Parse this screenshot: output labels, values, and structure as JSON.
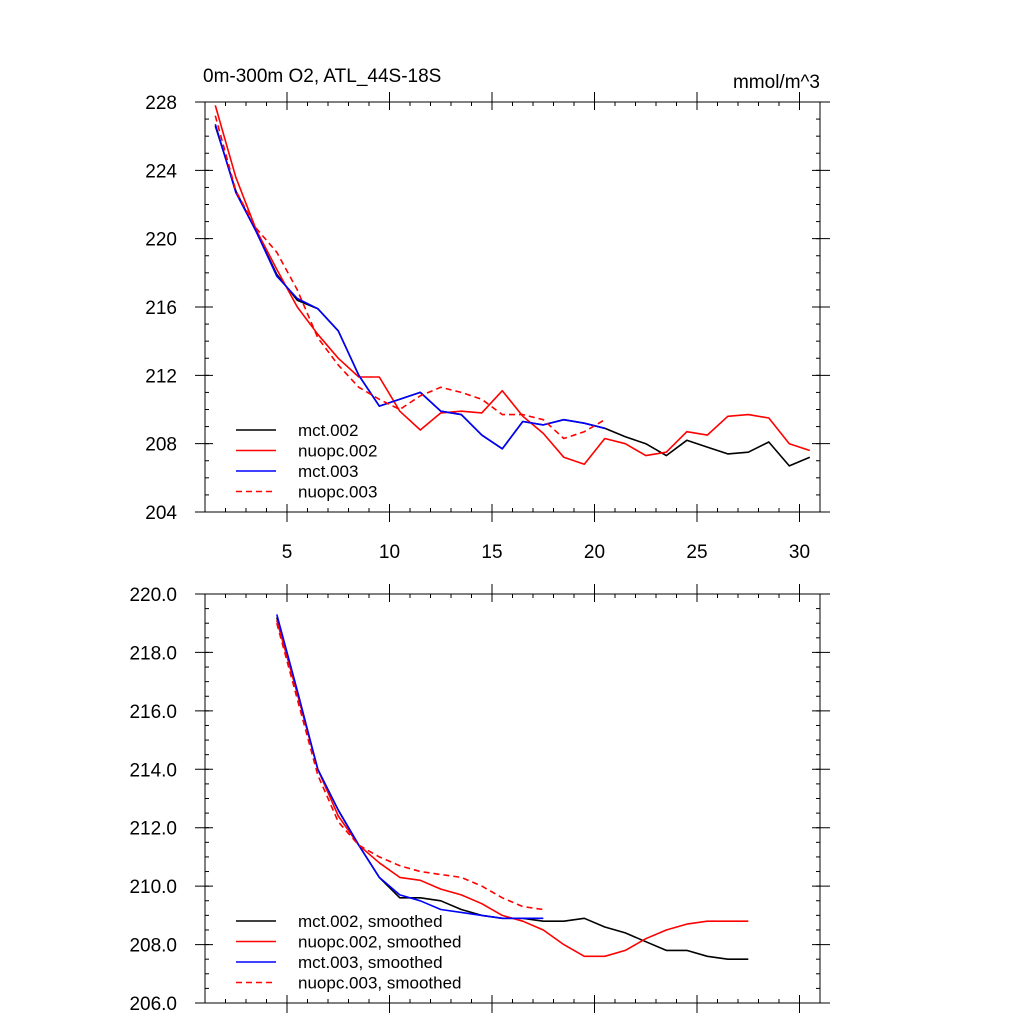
{
  "chart_data": [
    {
      "type": "line",
      "title": "0m-300m O2, ATL_44S-18S",
      "units": "mmol/m^3",
      "xlim": [
        1,
        31
      ],
      "ylim": [
        204,
        228
      ],
      "xticks": [
        5,
        10,
        15,
        20,
        25,
        30
      ],
      "yticks": [
        204,
        208,
        212,
        216,
        220,
        224,
        228
      ],
      "ytick_labels": [
        "204",
        "208",
        "212",
        "216",
        "220",
        "224",
        "228"
      ],
      "show_xtick_labels": true,
      "legend_position": "lower-left",
      "series": [
        {
          "name": "mct.002",
          "color": "#000000",
          "dash": "solid",
          "x": [
            1.5,
            2.5,
            3.5,
            4.5,
            5.5,
            6.5,
            7.5,
            8.5,
            9.5,
            10.5,
            11.5,
            12.5,
            13.5,
            14.5,
            15.5,
            16.5,
            17.5,
            18.5,
            19.5,
            20.5,
            21.5,
            22.5,
            23.5,
            24.5,
            25.5,
            26.5,
            27.5,
            28.5,
            29.5,
            30.5
          ],
          "y": [
            226.6,
            222.8,
            220.4,
            217.9,
            216.4,
            215.9,
            214.6,
            212.0,
            210.2,
            210.6,
            211.0,
            209.9,
            209.7,
            208.5,
            207.7,
            209.3,
            209.1,
            209.4,
            209.2,
            208.9,
            208.4,
            208.0,
            207.3,
            208.2,
            207.8,
            207.4,
            207.5,
            208.1,
            206.7,
            207.2
          ]
        },
        {
          "name": "nuopc.002",
          "color": "#ff0000",
          "dash": "solid",
          "x": [
            1.5,
            2.5,
            3.5,
            4.5,
            5.5,
            6.5,
            7.5,
            8.5,
            9.5,
            10.5,
            11.5,
            12.5,
            13.5,
            14.5,
            15.5,
            16.5,
            17.5,
            18.5,
            19.5,
            20.5,
            21.5,
            22.5,
            23.5,
            24.5,
            25.5,
            26.5,
            27.5,
            28.5,
            29.5,
            30.5
          ],
          "y": [
            227.8,
            223.6,
            220.5,
            218.2,
            216.0,
            214.4,
            213.0,
            211.9,
            211.9,
            209.9,
            208.8,
            209.8,
            209.9,
            209.8,
            211.1,
            209.6,
            208.6,
            207.2,
            206.8,
            208.3,
            208.0,
            207.3,
            207.5,
            208.7,
            208.5,
            209.6,
            209.7,
            209.5,
            208.0,
            207.6
          ]
        },
        {
          "name": "mct.003",
          "color": "#0000ff",
          "dash": "solid",
          "x": [
            1.5,
            2.5,
            3.5,
            4.5,
            5.5,
            6.5,
            7.5,
            8.5,
            9.5,
            10.5,
            11.5,
            12.5,
            13.5,
            14.5,
            15.5,
            16.5,
            17.5,
            18.5,
            19.5,
            20.5
          ],
          "y": [
            226.7,
            222.7,
            220.4,
            217.8,
            216.5,
            215.9,
            214.6,
            212.0,
            210.2,
            210.6,
            211.0,
            209.9,
            209.7,
            208.5,
            207.7,
            209.3,
            209.1,
            209.4,
            209.2,
            208.9
          ]
        },
        {
          "name": "nuopc.003",
          "color": "#ff0000",
          "dash": "dashed",
          "x": [
            1.5,
            2.5,
            3.5,
            4.5,
            5.5,
            6.5,
            7.5,
            8.5,
            9.5,
            10.5,
            11.5,
            12.5,
            13.5,
            14.5,
            15.5,
            16.5,
            17.5,
            18.5,
            19.5,
            20.5
          ],
          "y": [
            227.2,
            222.8,
            220.6,
            219.2,
            217.0,
            214.2,
            212.6,
            211.3,
            210.6,
            210.0,
            210.8,
            211.3,
            211.0,
            210.6,
            209.7,
            209.7,
            209.4,
            208.3,
            208.7,
            209.4
          ]
        }
      ]
    },
    {
      "type": "line",
      "title": "",
      "units": "",
      "xlim": [
        1,
        31
      ],
      "ylim": [
        206,
        220
      ],
      "xticks": [
        5,
        10,
        15,
        20,
        25,
        30
      ],
      "yticks": [
        206,
        208,
        210,
        212,
        214,
        216,
        218,
        220
      ],
      "ytick_labels": [
        "206.0",
        "208.0",
        "210.0",
        "212.0",
        "214.0",
        "216.0",
        "218.0",
        "220.0"
      ],
      "show_xtick_labels": false,
      "legend_position": "lower-left",
      "series": [
        {
          "name": "mct.002, smoothed",
          "color": "#000000",
          "dash": "solid",
          "x": [
            4.5,
            5.5,
            6.5,
            7.5,
            8.5,
            9.5,
            10.5,
            11.5,
            12.5,
            13.5,
            14.5,
            15.5,
            16.5,
            17.5,
            18.5,
            19.5,
            20.5,
            21.5,
            22.5,
            23.5,
            24.5,
            25.5,
            26.5,
            27.5
          ],
          "y": [
            219.2,
            216.6,
            214.0,
            212.6,
            211.4,
            210.3,
            209.6,
            209.6,
            209.5,
            209.2,
            209.0,
            208.9,
            208.9,
            208.8,
            208.8,
            208.9,
            208.6,
            208.4,
            208.1,
            207.8,
            207.8,
            207.6,
            207.5,
            207.5
          ]
        },
        {
          "name": "nuopc.002, smoothed",
          "color": "#ff0000",
          "dash": "solid",
          "x": [
            4.5,
            5.5,
            6.5,
            7.5,
            8.5,
            9.5,
            10.5,
            11.5,
            12.5,
            13.5,
            14.5,
            15.5,
            16.5,
            17.5,
            18.5,
            19.5,
            20.5,
            21.5,
            22.5,
            23.5,
            24.5,
            25.5,
            26.5,
            27.5
          ],
          "y": [
            219.1,
            216.6,
            214.0,
            212.4,
            211.4,
            210.8,
            210.3,
            210.2,
            209.9,
            209.7,
            209.4,
            209.0,
            208.8,
            208.5,
            208.0,
            207.6,
            207.6,
            207.8,
            208.2,
            208.5,
            208.7,
            208.8,
            208.8,
            208.8
          ]
        },
        {
          "name": "mct.003, smoothed",
          "color": "#0000ff",
          "dash": "solid",
          "x": [
            4.5,
            5.5,
            6.5,
            7.5,
            8.5,
            9.5,
            10.5,
            11.5,
            12.5,
            13.5,
            14.5,
            15.5,
            16.5,
            17.5
          ],
          "y": [
            219.3,
            216.7,
            214.0,
            212.6,
            211.4,
            210.3,
            209.7,
            209.5,
            209.2,
            209.1,
            209.0,
            208.9,
            208.9,
            208.9
          ]
        },
        {
          "name": "nuopc.003, smoothed",
          "color": "#ff0000",
          "dash": "dashed",
          "x": [
            4.5,
            5.5,
            6.5,
            7.5,
            8.5,
            9.5,
            10.5,
            11.5,
            12.5,
            13.5,
            14.5,
            15.5,
            16.5,
            17.5
          ],
          "y": [
            219.0,
            216.4,
            213.8,
            212.2,
            211.4,
            211.0,
            210.7,
            210.5,
            210.4,
            210.3,
            210.0,
            209.6,
            209.3,
            209.2
          ]
        }
      ]
    }
  ]
}
